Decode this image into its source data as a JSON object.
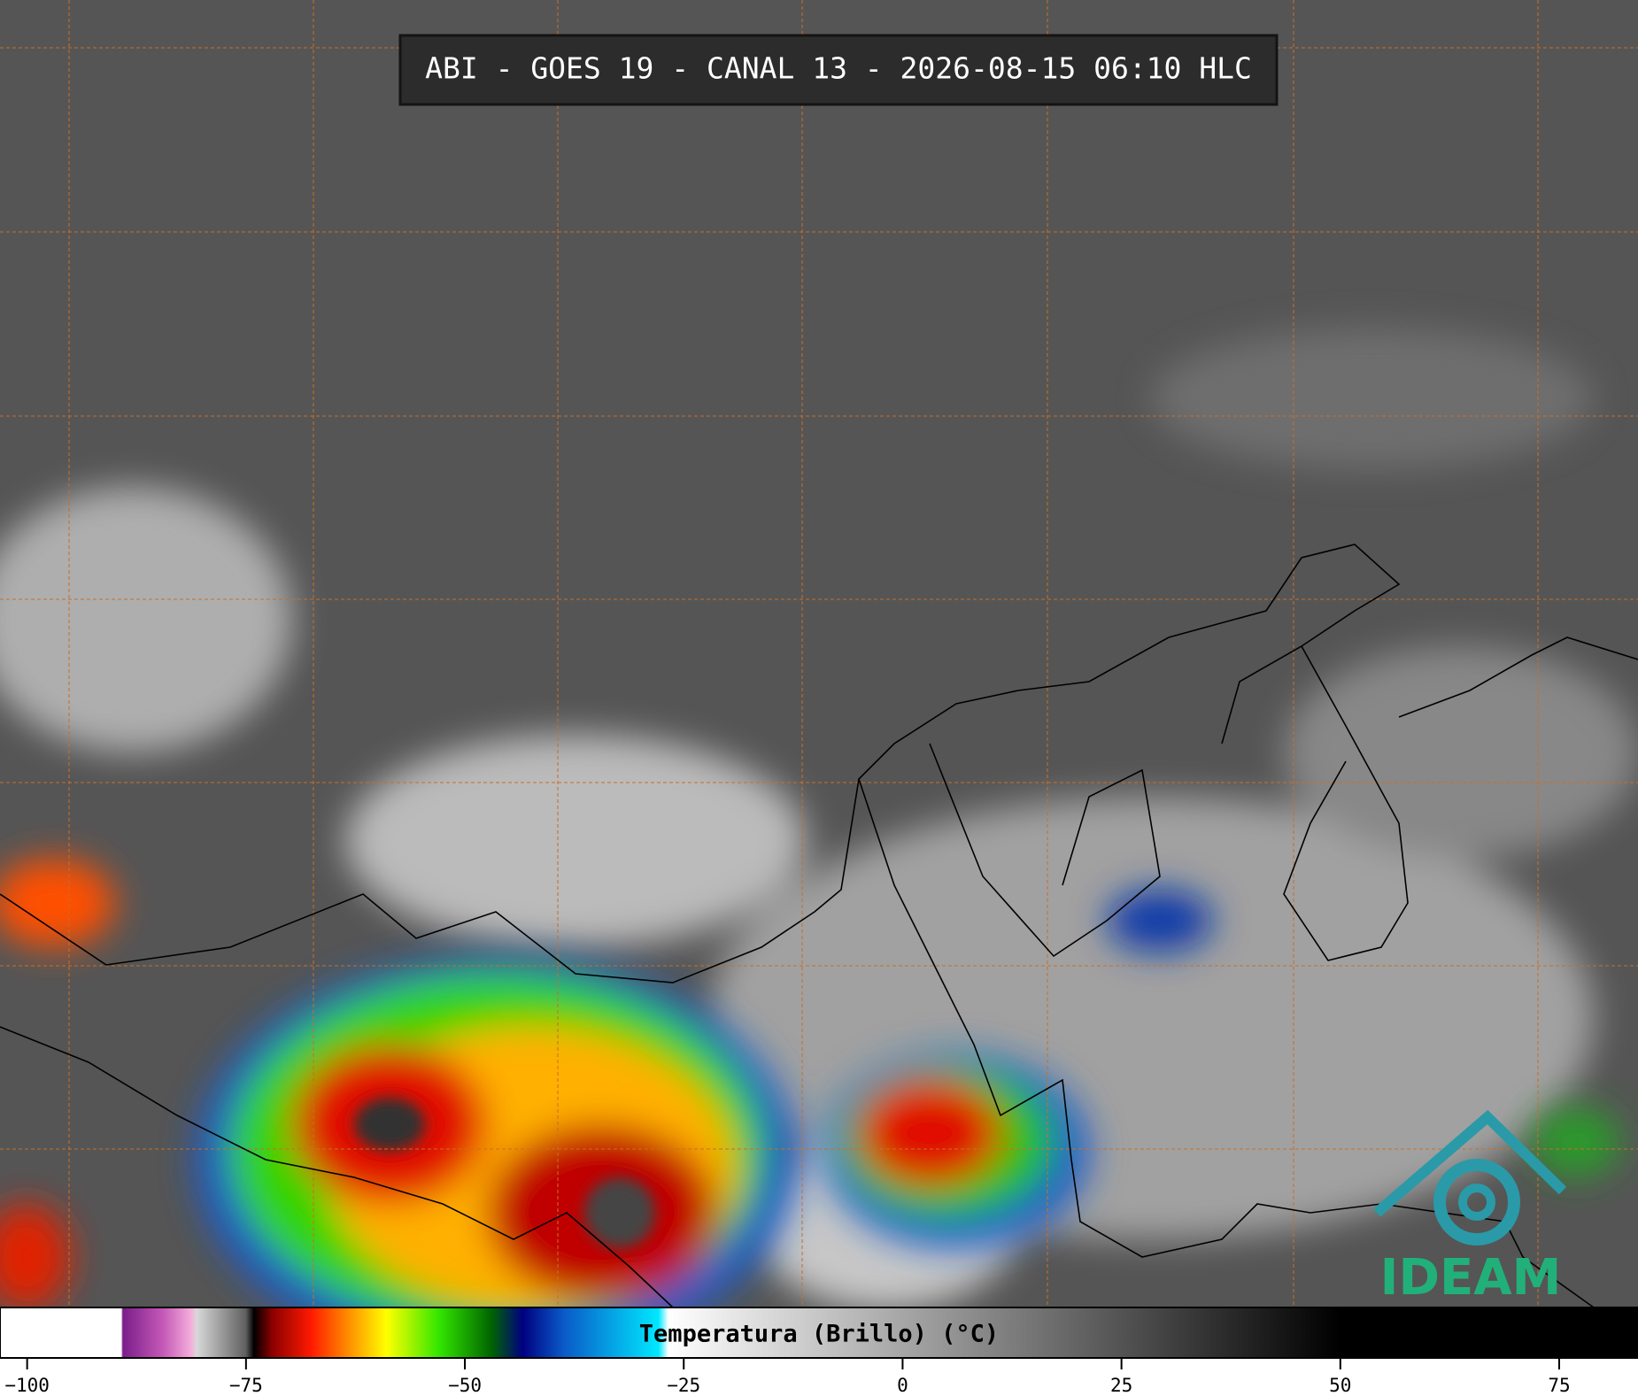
{
  "title": "ABI - GOES 19 - CANAL 13 - 2026-08-15 06:10 HLC",
  "logo": "IDEAM",
  "colorbar": {
    "label": "Temperatura (Brillo) (°C)",
    "xlim": [
      -103.1,
      84
    ],
    "xticks": [
      {
        "value": -100,
        "label": "−100"
      },
      {
        "value": -75,
        "label": "−75"
      },
      {
        "value": -50,
        "label": "−50"
      },
      {
        "value": -25,
        "label": "−25"
      },
      0,
      25,
      50,
      75
    ]
  }
}
